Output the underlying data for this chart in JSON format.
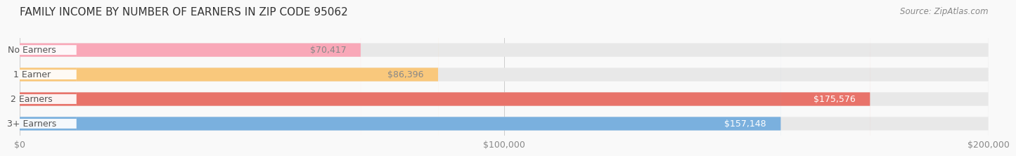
{
  "title": "FAMILY INCOME BY NUMBER OF EARNERS IN ZIP CODE 95062",
  "source": "Source: ZipAtlas.com",
  "categories": [
    "No Earners",
    "1 Earner",
    "2 Earners",
    "3+ Earners"
  ],
  "values": [
    70417,
    86396,
    175576,
    157148
  ],
  "bar_colors": [
    "#f9a8b8",
    "#f9c87c",
    "#e8736a",
    "#7ab0de"
  ],
  "label_colors": [
    "#888888",
    "#888888",
    "#ffffff",
    "#ffffff"
  ],
  "bar_bg_color": "#efefef",
  "label_bg_color": "#ffffff",
  "xlim": [
    0,
    200000
  ],
  "xticks": [
    0,
    100000,
    200000
  ],
  "xtick_labels": [
    "$0",
    "$100,000",
    "$200,000"
  ],
  "bar_height": 0.55,
  "background_color": "#f9f9f9",
  "title_fontsize": 11,
  "source_fontsize": 8.5,
  "label_fontsize": 9,
  "tick_fontsize": 9,
  "cat_fontsize": 9
}
